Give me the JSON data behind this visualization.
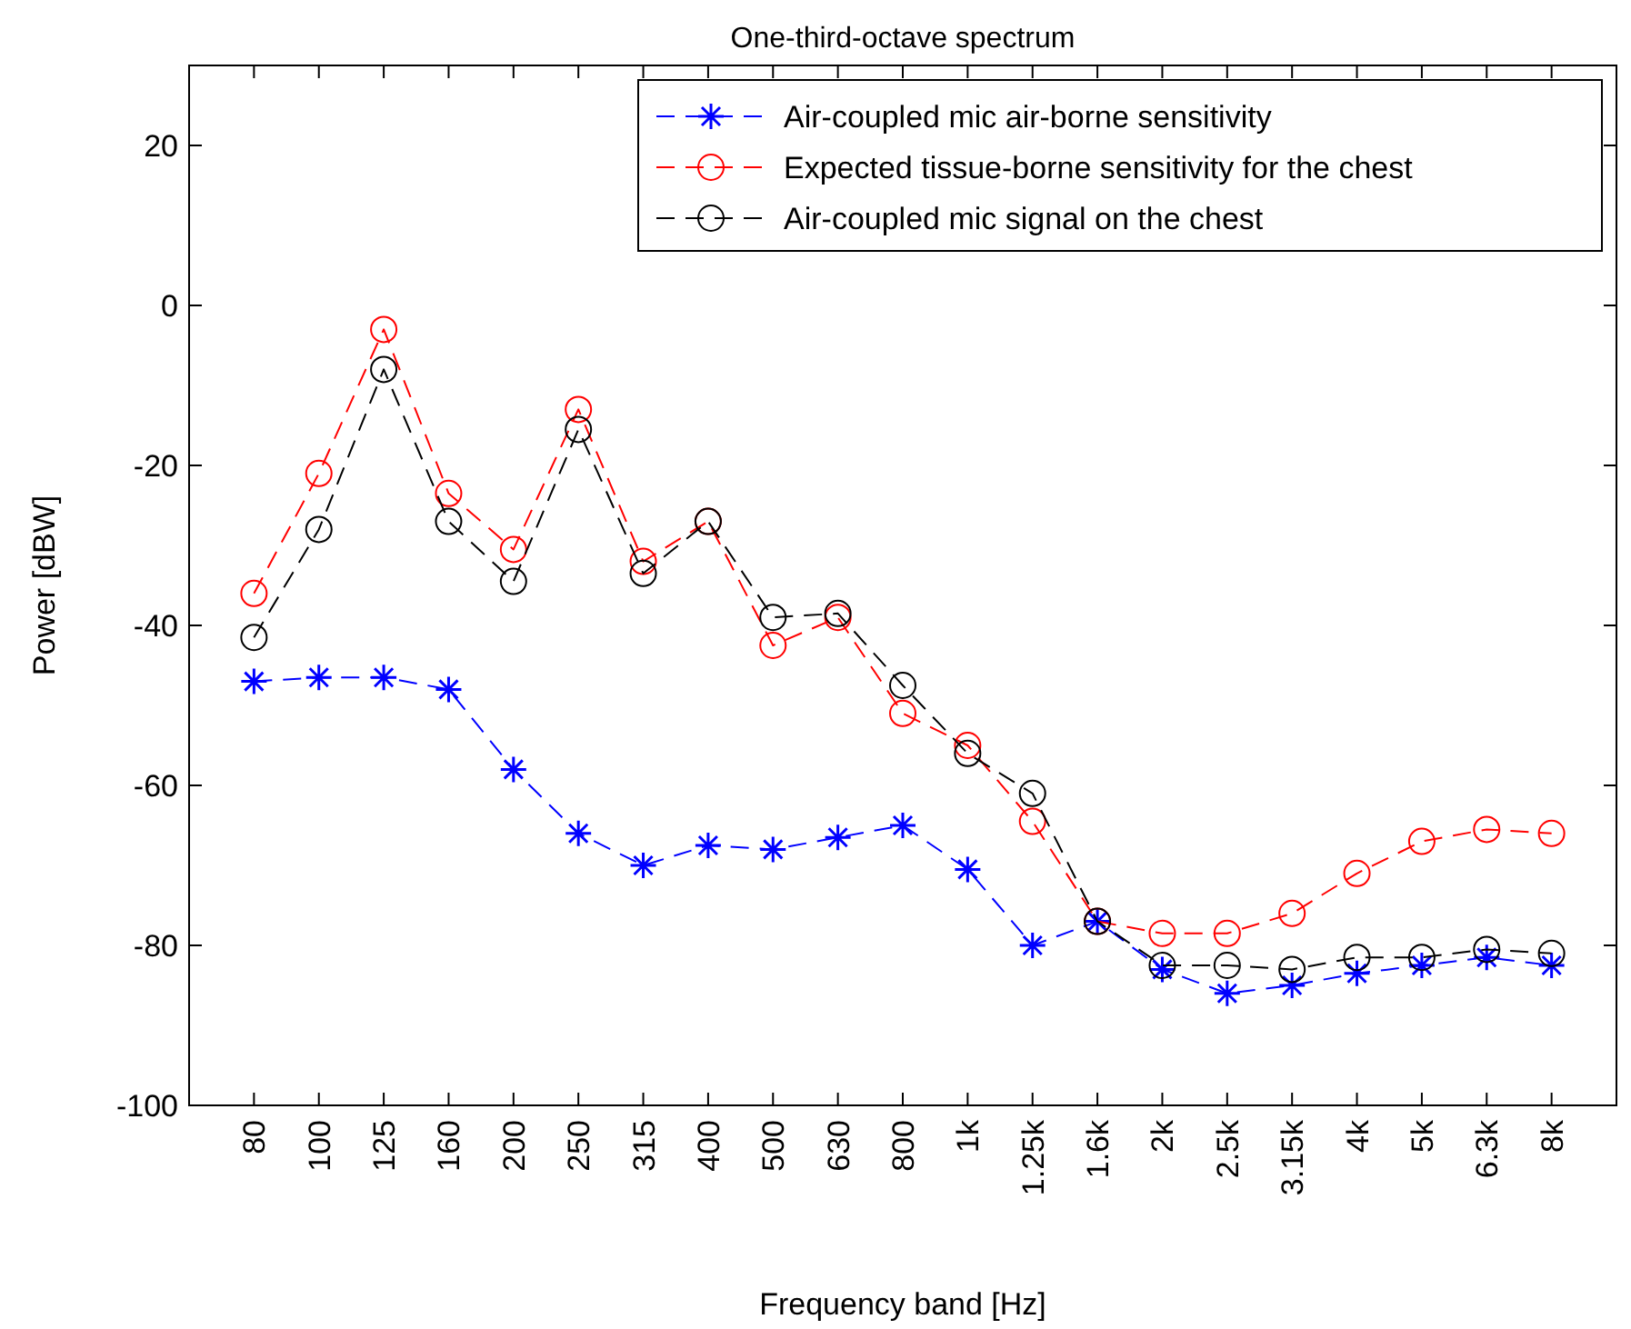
{
  "chart_data": {
    "type": "line",
    "title": "One-third-octave spectrum",
    "xlabel": "Frequency band [Hz]",
    "ylabel": "Power [dBW]",
    "categories": [
      "80",
      "100",
      "125",
      "160",
      "200",
      "250",
      "315",
      "400",
      "500",
      "630",
      "800",
      "1k",
      "1.25k",
      "1.6k",
      "2k",
      "2.5k",
      "3.15k",
      "4k",
      "5k",
      "6.3k",
      "8k"
    ],
    "ylim": [
      -100,
      30
    ],
    "yticks": [
      -100,
      -80,
      -60,
      -40,
      -20,
      0,
      20
    ],
    "grid": false,
    "legend": "top right",
    "line_style": "dashed",
    "series": [
      {
        "name": "Air-coupled mic air-borne sensitivity",
        "color": "#0000ff",
        "marker": "cross",
        "values": [
          -47,
          -46.5,
          -46.5,
          -48,
          -58,
          -66,
          -70,
          -67.5,
          -68,
          -66.5,
          -65,
          -70.5,
          -80,
          -77,
          -83,
          -86,
          -85,
          -83.5,
          -82.5,
          -81.5,
          -82.5
        ]
      },
      {
        "name": "Expected tissue-borne sensitivity for the chest",
        "color": "#ff0000",
        "marker": "circle",
        "values": [
          -36,
          -21,
          -3,
          -23.5,
          -30.5,
          -13,
          -32,
          -27,
          -42.5,
          -39,
          -51,
          -55,
          -64.5,
          -77,
          -78.5,
          -78.5,
          -76,
          -71,
          -67,
          -65.5,
          -66
        ]
      },
      {
        "name": "Air-coupled mic signal on the chest",
        "color": "#000000",
        "marker": "circle",
        "values": [
          -41.5,
          -28,
          -8,
          -27,
          -34.5,
          -15.5,
          -33.5,
          -27,
          -39,
          -38.5,
          -47.5,
          -56,
          -61,
          -77,
          -82.5,
          -82.5,
          -83,
          -81.5,
          -81.5,
          -80.5,
          -81
        ]
      }
    ]
  }
}
